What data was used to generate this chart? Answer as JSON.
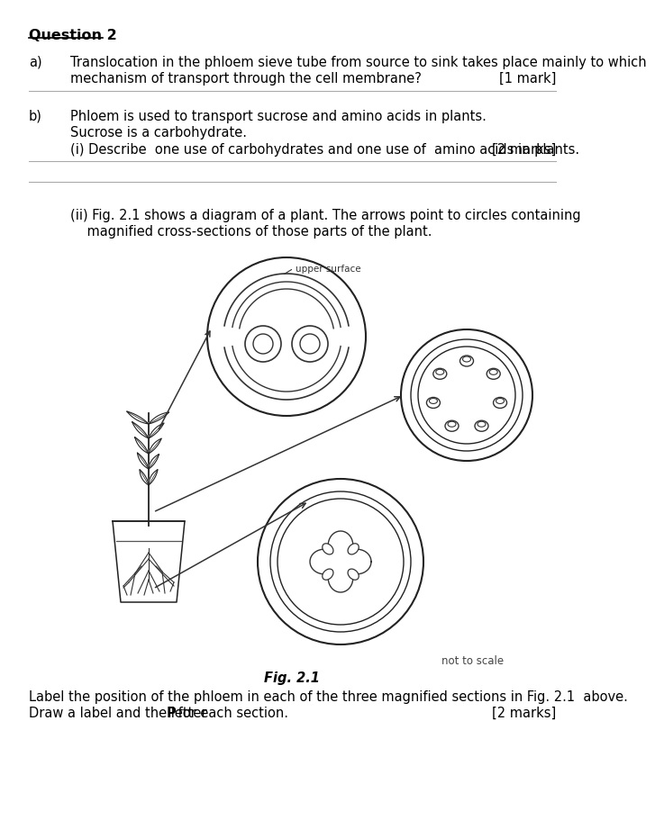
{
  "bg_color": "#ffffff",
  "text_color": "#000000",
  "page_width": 6.29,
  "page_height": 9.02,
  "question_title": "Question 2",
  "part_a_label": "a)",
  "part_a_text1": "Translocation in the phloem sieve tube from source to sink takes place mainly to which",
  "part_a_text2": "mechanism of transport through the cell membrane?",
  "part_a_mark": "[1 mark]",
  "part_b_label": "b)",
  "part_b_text1": "Phloem is used to transport sucrose and amino acids in plants.",
  "part_b_text2": "Sucrose is a carbohydrate.",
  "part_bi_label": "(i) Describe  one use of carbohydrates and one use of  amino acids in plants.",
  "part_bi_mark": "[2 marks]",
  "part_bii_text1": "(ii) Fig. 2.1 shows a diagram of a plant. The arrows point to circles containing",
  "part_bii_text2": "    magnified cross-sections of those parts of the plant.",
  "fig_label": "Fig. 2.1",
  "not_to_scale": "not to scale",
  "bottom_text1": "Label the position of the phloem in each of the three magnified sections in Fig. 2.1  above.",
  "bottom_text2": "Draw a label and the letter ",
  "bottom_text2b": "P",
  "bottom_text2c": " for each section.",
  "bottom_mark": "[2 marks]",
  "upper_surface": "upper surface"
}
